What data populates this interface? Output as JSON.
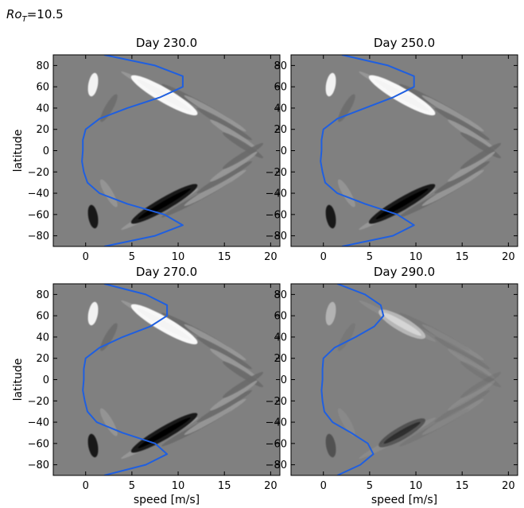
{
  "figure": {
    "suptitle_symbol": "Ro",
    "suptitle_subscript": "T",
    "suptitle_value": "=10.5"
  },
  "chart_data": [
    {
      "type": "contour",
      "title": "Day 230.0",
      "xlabel": "",
      "ylabel": "latitude",
      "xlim": [
        -3.5,
        21
      ],
      "ylim": [
        -90,
        90
      ],
      "xticks": [
        0,
        5,
        10,
        15,
        20
      ],
      "yticks": [
        -80,
        -60,
        -40,
        -20,
        0,
        20,
        40,
        60,
        80
      ],
      "background_color": "#808080",
      "line_color": "#1f5fe0",
      "rotation_profile": {
        "latitude": [
          -90,
          -80,
          -70,
          -60,
          -50,
          -40,
          -30,
          -20,
          -10,
          0,
          10,
          20,
          30,
          40,
          50,
          60,
          70,
          80,
          90
        ],
        "speed": [
          2,
          7.5,
          10.5,
          8.5,
          4.5,
          1.5,
          0.2,
          -0.2,
          -0.4,
          -0.3,
          -0.3,
          0,
          1.5,
          4.5,
          8.0,
          10.5,
          10.5,
          7.5,
          2
        ]
      }
    },
    {
      "type": "contour",
      "title": "Day 250.0",
      "xlabel": "",
      "ylabel": "",
      "xlim": [
        -3.5,
        21
      ],
      "ylim": [
        -90,
        90
      ],
      "xticks": [
        0,
        5,
        10,
        15,
        20
      ],
      "yticks": [
        -80,
        -60,
        -40,
        -20,
        0,
        20,
        40,
        60,
        80
      ],
      "background_color": "#808080",
      "line_color": "#1f5fe0",
      "rotation_profile": {
        "latitude": [
          -90,
          -80,
          -70,
          -60,
          -50,
          -40,
          -30,
          -20,
          -10,
          0,
          10,
          20,
          30,
          40,
          50,
          60,
          70,
          80,
          90
        ],
        "speed": [
          2,
          7.5,
          9.8,
          8.0,
          4.5,
          1.5,
          0.2,
          -0.1,
          -0.3,
          -0.2,
          -0.2,
          0,
          1.5,
          4.5,
          7.5,
          9.8,
          9.8,
          7.0,
          2
        ]
      }
    },
    {
      "type": "contour",
      "title": "Day 270.0",
      "xlabel": "speed [m/s]",
      "ylabel": "latitude",
      "xlim": [
        -3.5,
        21
      ],
      "ylim": [
        -90,
        90
      ],
      "xticks": [
        0,
        5,
        10,
        15,
        20
      ],
      "yticks": [
        -80,
        -60,
        -40,
        -20,
        0,
        20,
        40,
        60,
        80
      ],
      "background_color": "#808080",
      "line_color": "#1f5fe0",
      "rotation_profile": {
        "latitude": [
          -90,
          -80,
          -70,
          -60,
          -50,
          -40,
          -30,
          -20,
          -10,
          0,
          10,
          20,
          30,
          40,
          50,
          60,
          70,
          80,
          90
        ],
        "speed": [
          2,
          6.5,
          8.8,
          7.5,
          4.0,
          1.2,
          0.2,
          -0.1,
          -0.3,
          -0.2,
          -0.2,
          0,
          1.5,
          4.0,
          7.0,
          8.8,
          8.8,
          6.5,
          2
        ]
      }
    },
    {
      "type": "contour",
      "title": "Day 290.0",
      "xlabel": "speed [m/s]",
      "ylabel": "",
      "xlim": [
        -3.5,
        21
      ],
      "ylim": [
        -90,
        90
      ],
      "xticks": [
        0,
        5,
        10,
        15,
        20
      ],
      "yticks": [
        -80,
        -60,
        -40,
        -20,
        0,
        20,
        40,
        60,
        80
      ],
      "background_color": "#808080",
      "line_color": "#1f5fe0",
      "rotation_profile": {
        "latitude": [
          -90,
          -80,
          -70,
          -60,
          -50,
          -40,
          -30,
          -20,
          -10,
          0,
          10,
          20,
          30,
          40,
          50,
          60,
          70,
          80,
          90
        ],
        "speed": [
          1.5,
          4.0,
          5.4,
          4.8,
          3.0,
          1.0,
          0.1,
          -0.1,
          -0.2,
          -0.1,
          -0.1,
          0,
          1.2,
          3.5,
          5.5,
          6.5,
          6.2,
          4.5,
          1.5
        ]
      }
    }
  ]
}
